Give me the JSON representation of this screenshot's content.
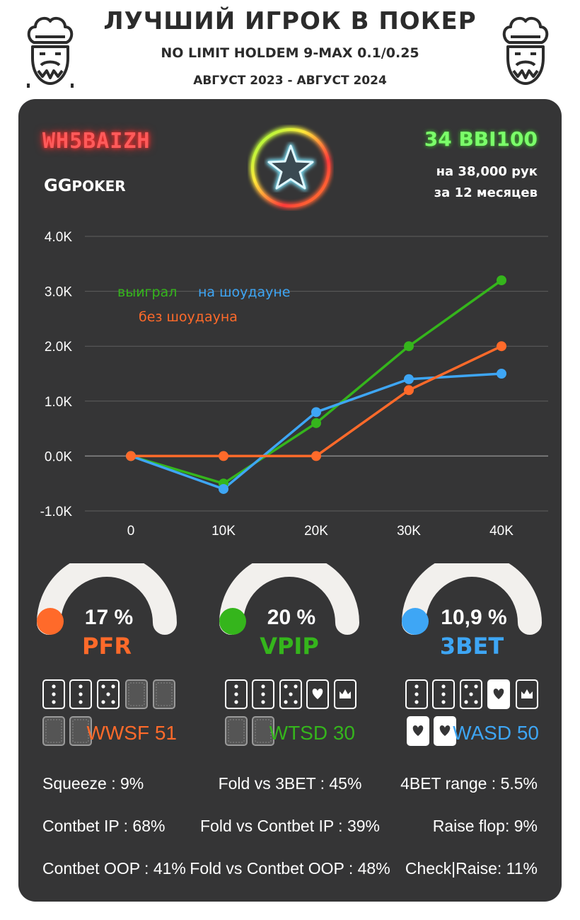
{
  "header": {
    "title": "ЛУЧШИЙ ИГРОК В ПОКЕР",
    "subtitle": "NO LIMIT HOLDEM 9-MAX 0.1/0.25",
    "period": "АВГУСТ 2023 - АВГУСТ 2024"
  },
  "player": {
    "name": "WH5BAIZH",
    "room_logo_text": "POKER",
    "room_logo_mark": "GG",
    "winrate": "34 BBI100",
    "hands": "на 38,000 рук",
    "months": "за  12 месяцев"
  },
  "colors": {
    "green": "#35b51c",
    "orange": "#ff6a2a",
    "blue": "#3ea6f5",
    "panel": "#353536"
  },
  "chart_data": {
    "type": "line",
    "x": [
      0,
      10000,
      20000,
      30000,
      40000
    ],
    "x_tick_labels": [
      "0",
      "10K",
      "20K",
      "30K",
      "40K"
    ],
    "y_tick_labels": [
      "4.0K",
      "3.0K",
      "2.0K",
      "1.0K",
      "0.0K",
      "-1.0K"
    ],
    "y_ticks": [
      4000,
      3000,
      2000,
      1000,
      0,
      -1000
    ],
    "ylim": [
      -1000,
      4000
    ],
    "grid": true,
    "series": [
      {
        "name": "выиграл",
        "color": "#35b51c",
        "values": [
          0,
          -500,
          600,
          2000,
          3200
        ]
      },
      {
        "name": "на шоудауне",
        "color": "#3ea6f5",
        "values": [
          0,
          -600,
          800,
          1400,
          1500
        ]
      },
      {
        "name": "без шоудауна",
        "color": "#ff6a2a",
        "values": [
          0,
          0,
          0,
          1200,
          2000
        ]
      }
    ]
  },
  "gauges": [
    {
      "value": "17 %",
      "label": "PFR",
      "color": "#ff6a2a",
      "fraction": 0.17
    },
    {
      "value": "20 %",
      "label": "VPIP",
      "color": "#35b51c",
      "fraction": 0.2
    },
    {
      "value": "10,9 %",
      "label": "3BET",
      "color": "#3ea6f5",
      "fraction": 0.109
    }
  ],
  "extras": [
    {
      "label": "WWSF 51",
      "color": "#ff6a2a"
    },
    {
      "label": "WTSD 30",
      "color": "#35b51c"
    },
    {
      "label": "WASD 50",
      "color": "#3ea6f5"
    }
  ],
  "stats": {
    "left": [
      "Squeeze : 9%",
      "Contbet IP : 68%",
      "Contbet OOP : 41%"
    ],
    "center": [
      "Fold vs 3BET : 45%",
      "Fold vs Contbet IP : 39%",
      "Fold vs Contbet OOP : 48%"
    ],
    "right": [
      "4BET range : 5.5%",
      "Raise flop: 9%",
      "Check|Raise: 11%"
    ]
  }
}
